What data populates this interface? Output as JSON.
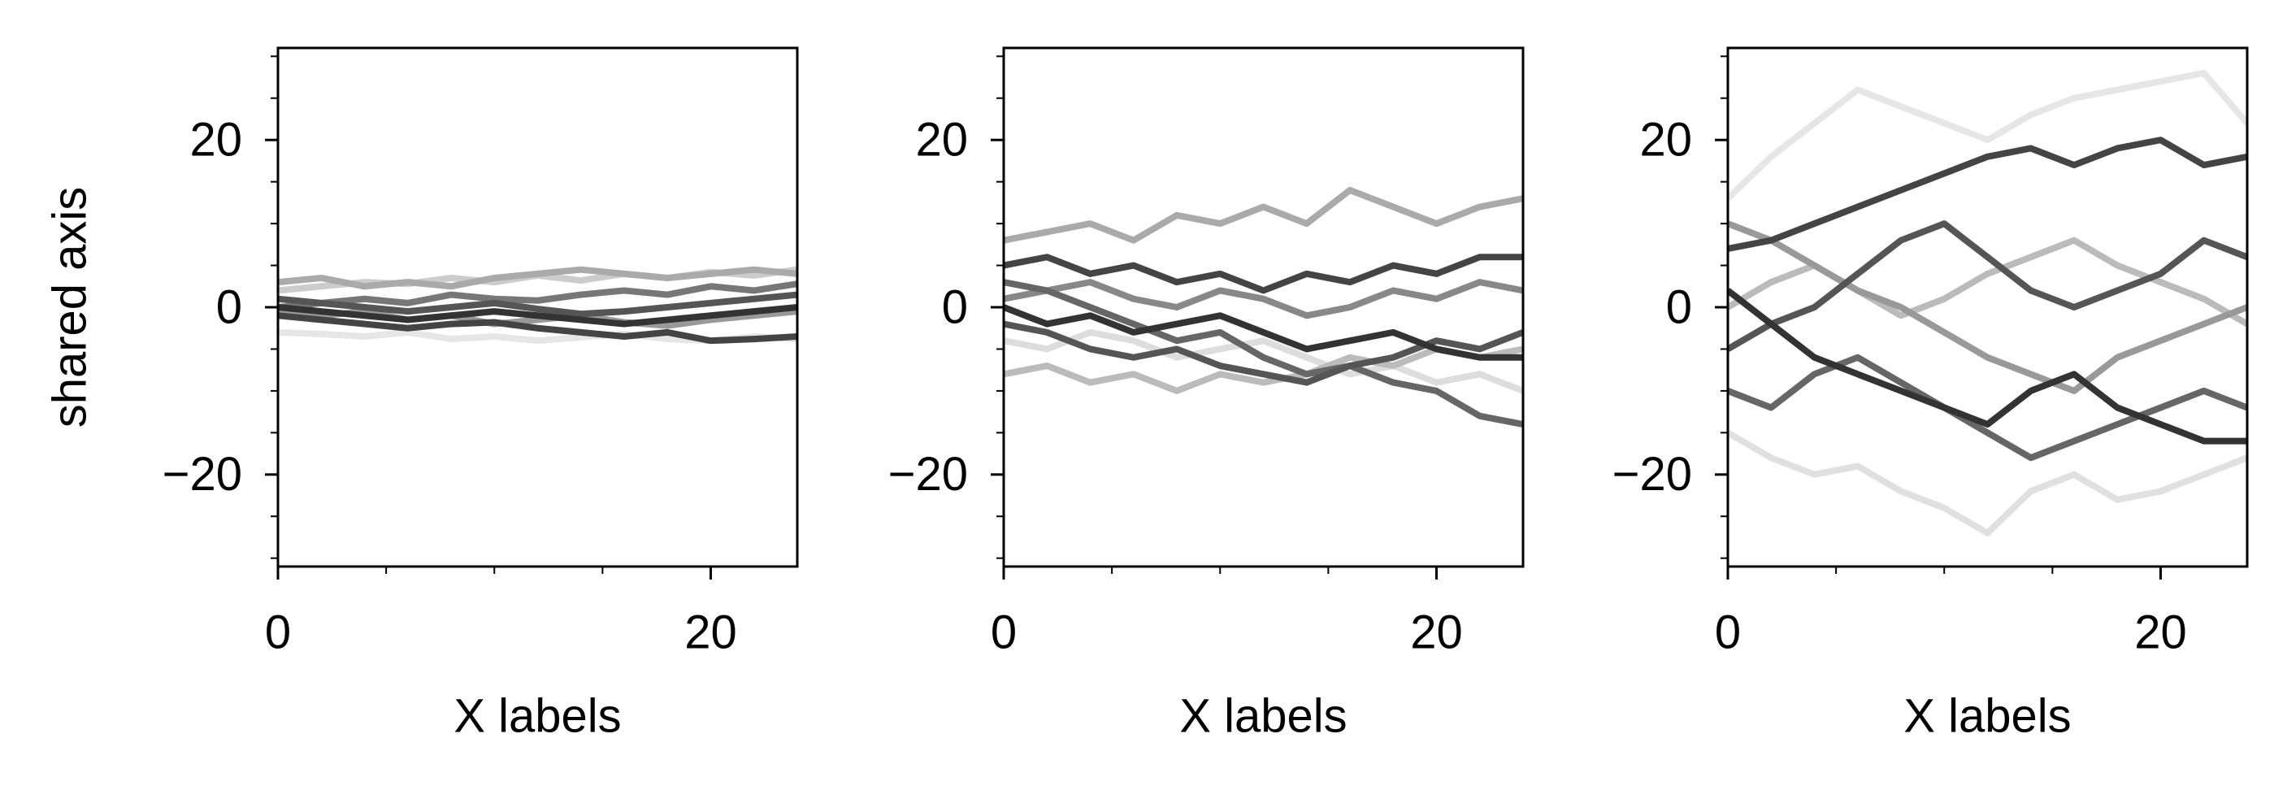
{
  "chart_data": [
    {
      "type": "line",
      "xlabel": "X labels",
      "ylabel": "shared axis",
      "x": [
        0,
        2,
        4,
        6,
        8,
        10,
        12,
        14,
        16,
        18,
        20,
        22,
        24
      ],
      "xlim": [
        0,
        24
      ],
      "ylim": [
        -31,
        31
      ],
      "xticks": [
        0,
        20
      ],
      "xminorticks": [
        5,
        10,
        15
      ],
      "yticks": [
        {
          "value": -20,
          "label": "−20"
        },
        0,
        20
      ],
      "yminorticks": [
        -30,
        -25,
        -15,
        -10,
        -5,
        5,
        10,
        15,
        25,
        30
      ],
      "series": [
        {
          "color": "#cccccc",
          "values": [
            2,
            2.5,
            3,
            2.8,
            3.5,
            3,
            3.8,
            3.2,
            4,
            3.5,
            4.2,
            3.8,
            4.5
          ]
        },
        {
          "color": "#e6e6e6",
          "values": [
            -3,
            -3.2,
            -3.5,
            -3,
            -3.8,
            -3.5,
            -4,
            -3.6,
            -3.2,
            -3.8,
            -4,
            -3.5,
            -3.8
          ]
        },
        {
          "color": "#aaaaaa",
          "values": [
            3,
            3.5,
            2.5,
            3,
            2.5,
            3.5,
            4,
            4.5,
            4,
            3.5,
            4,
            4.5,
            4
          ]
        },
        {
          "color": "#999999",
          "values": [
            -0.5,
            -1,
            -0.5,
            -1.5,
            -1,
            -2,
            -1.5,
            -1,
            -1.8,
            -2.2,
            -1.5,
            -1,
            -0.5
          ]
        },
        {
          "color": "#777777",
          "values": [
            0,
            0.5,
            1,
            0.5,
            1.5,
            1,
            0.8,
            1.5,
            2,
            1.5,
            2.5,
            2,
            2.8
          ]
        },
        {
          "color": "#555555",
          "values": [
            1,
            0.5,
            0,
            -0.5,
            0,
            0.5,
            -0.2,
            -0.8,
            -0.5,
            0,
            0.5,
            1,
            1.5
          ]
        },
        {
          "color": "#444444",
          "values": [
            -1,
            -1.5,
            -2,
            -2.5,
            -2,
            -1.8,
            -2.5,
            -3,
            -3.5,
            -3,
            -4,
            -3.8,
            -3.5
          ]
        },
        {
          "color": "#333333",
          "values": [
            0,
            -0.5,
            -1,
            -1.5,
            -1,
            -0.5,
            -1,
            -1.5,
            -2,
            -1.5,
            -1,
            -0.5,
            0
          ]
        }
      ]
    },
    {
      "type": "line",
      "xlabel": "X labels",
      "x": [
        0,
        2,
        4,
        6,
        8,
        10,
        12,
        14,
        16,
        18,
        20,
        22,
        24
      ],
      "xlim": [
        0,
        24
      ],
      "ylim": [
        -31,
        31
      ],
      "xticks": [
        0,
        20
      ],
      "xminorticks": [
        5,
        10,
        15
      ],
      "yticks": [
        {
          "value": -20,
          "label": "−20"
        },
        0,
        20
      ],
      "yminorticks": [
        -30,
        -25,
        -15,
        -10,
        -5,
        5,
        10,
        15,
        25,
        30
      ],
      "series": [
        {
          "color": "#dddddd",
          "values": [
            -4,
            -5,
            -3,
            -4,
            -6,
            -5,
            -4,
            -6,
            -8,
            -7,
            -9,
            -8,
            -10
          ]
        },
        {
          "color": "#bbbbbb",
          "values": [
            -8,
            -7,
            -9,
            -8,
            -10,
            -8,
            -9,
            -8,
            -6,
            -7,
            -5,
            -6,
            -5
          ]
        },
        {
          "color": "#aaaaaa",
          "values": [
            8,
            9,
            10,
            8,
            11,
            10,
            12,
            10,
            14,
            12,
            10,
            12,
            13
          ]
        },
        {
          "color": "#888888",
          "values": [
            1,
            2,
            3,
            1,
            0,
            2,
            1,
            -1,
            0,
            2,
            1,
            3,
            2
          ]
        },
        {
          "color": "#666666",
          "values": [
            3,
            2,
            0,
            -2,
            -4,
            -3,
            -6,
            -8,
            -7,
            -9,
            -10,
            -13,
            -14
          ]
        },
        {
          "color": "#555555",
          "values": [
            -2,
            -3,
            -5,
            -6,
            -5,
            -7,
            -8,
            -9,
            -7,
            -6,
            -4,
            -5,
            -3
          ]
        },
        {
          "color": "#444444",
          "values": [
            5,
            6,
            4,
            5,
            3,
            4,
            2,
            4,
            3,
            5,
            4,
            6,
            6
          ]
        },
        {
          "color": "#333333",
          "values": [
            0,
            -2,
            -1,
            -3,
            -2,
            -1,
            -3,
            -5,
            -4,
            -3,
            -5,
            -6,
            -6
          ]
        }
      ]
    },
    {
      "type": "line",
      "xlabel": "X labels",
      "x": [
        0,
        2,
        4,
        6,
        8,
        10,
        12,
        14,
        16,
        18,
        20,
        22,
        24
      ],
      "xlim": [
        0,
        24
      ],
      "ylim": [
        -31,
        31
      ],
      "xticks": [
        0,
        20
      ],
      "xminorticks": [
        5,
        10,
        15
      ],
      "yticks": [
        {
          "value": -20,
          "label": "−20"
        },
        0,
        20
      ],
      "yminorticks": [
        -30,
        -25,
        -15,
        -10,
        -5,
        5,
        10,
        15,
        25,
        30
      ],
      "series": [
        {
          "color": "#e6e6e6",
          "values": [
            13,
            18,
            22,
            26,
            24,
            22,
            20,
            23,
            25,
            26,
            27,
            28,
            22
          ]
        },
        {
          "color": "#e0e0e0",
          "values": [
            -15,
            -18,
            -20,
            -19,
            -22,
            -24,
            -27,
            -22,
            -20,
            -23,
            -22,
            -20,
            -18
          ]
        },
        {
          "color": "#bbbbbb",
          "values": [
            0,
            3,
            5,
            2,
            -1,
            1,
            4,
            6,
            8,
            5,
            3,
            1,
            -2
          ]
        },
        {
          "color": "#999999",
          "values": [
            10,
            8,
            5,
            2,
            0,
            -3,
            -6,
            -8,
            -10,
            -6,
            -4,
            -2,
            0
          ]
        },
        {
          "color": "#666666",
          "values": [
            -10,
            -12,
            -8,
            -6,
            -9,
            -12,
            -15,
            -18,
            -16,
            -14,
            -12,
            -10,
            -12
          ]
        },
        {
          "color": "#555555",
          "values": [
            -5,
            -2,
            0,
            4,
            8,
            10,
            6,
            2,
            0,
            2,
            4,
            8,
            6
          ]
        },
        {
          "color": "#444444",
          "values": [
            7,
            8,
            10,
            12,
            14,
            16,
            18,
            19,
            17,
            19,
            20,
            17,
            18
          ]
        },
        {
          "color": "#333333",
          "values": [
            2,
            -2,
            -6,
            -8,
            -10,
            -12,
            -14,
            -10,
            -8,
            -12,
            -14,
            -16,
            -16
          ]
        }
      ]
    }
  ]
}
